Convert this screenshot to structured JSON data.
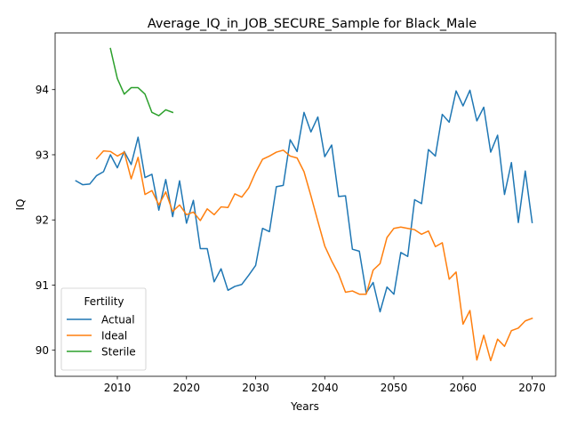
{
  "chart_data": {
    "type": "line",
    "title": "Average_IQ_in_JOB_SECURE_Sample for Black_Male",
    "xlabel": "Years",
    "ylabel": "IQ",
    "xlim": [
      2001,
      2073.4
    ],
    "ylim": [
      89.6,
      94.87
    ],
    "xticks": [
      2010,
      2020,
      2030,
      2040,
      2050,
      2060,
      2070
    ],
    "yticks": [
      90,
      91,
      92,
      93,
      94
    ],
    "grid": false,
    "legend": {
      "title": "Fertility",
      "placement": "lower-left"
    },
    "colors": {
      "Actual": "#1f77b4",
      "Ideal": "#ff7f0e",
      "Sterile": "#2ca02c"
    },
    "series": [
      {
        "name": "Actual",
        "x": [
          2004,
          2005,
          2006,
          2007,
          2008,
          2009,
          2010,
          2011,
          2012,
          2013,
          2014,
          2015,
          2016,
          2017,
          2018,
          2019,
          2020,
          2021,
          2022,
          2023,
          2024,
          2025,
          2026,
          2027,
          2028,
          2029,
          2030,
          2031,
          2032,
          2033,
          2034,
          2035,
          2036,
          2037,
          2038,
          2039,
          2040,
          2041,
          2042,
          2043,
          2044,
          2045,
          2046,
          2047,
          2048,
          2049,
          2050,
          2051,
          2052,
          2053,
          2054,
          2055,
          2056,
          2057,
          2058,
          2059,
          2060,
          2061,
          2062,
          2063,
          2064,
          2065,
          2066,
          2067,
          2068,
          2069,
          2070
        ],
        "y": [
          92.6,
          92.54,
          92.55,
          92.68,
          92.74,
          93.0,
          92.8,
          93.05,
          92.85,
          93.27,
          92.65,
          92.7,
          92.15,
          92.62,
          92.05,
          92.6,
          91.95,
          92.3,
          91.56,
          91.56,
          91.05,
          91.25,
          90.92,
          90.98,
          91.01,
          91.15,
          91.3,
          91.87,
          91.82,
          92.51,
          92.53,
          93.23,
          93.05,
          93.65,
          93.35,
          93.58,
          92.97,
          93.15,
          92.36,
          92.37,
          91.55,
          91.52,
          90.88,
          91.04,
          90.59,
          90.97,
          90.86,
          91.5,
          91.44,
          92.31,
          92.25,
          93.08,
          92.98,
          93.62,
          93.5,
          93.98,
          93.75,
          93.99,
          93.52,
          93.73,
          93.04,
          93.3,
          92.39,
          92.88,
          91.96,
          92.75,
          91.96
        ]
      },
      {
        "name": "Ideal",
        "x": [
          2007,
          2008,
          2009,
          2010,
          2011,
          2012,
          2013,
          2014,
          2015,
          2016,
          2017,
          2018,
          2019,
          2020,
          2021,
          2022,
          2023,
          2024,
          2025,
          2026,
          2027,
          2028,
          2029,
          2030,
          2031,
          2032,
          2033,
          2034,
          2035,
          2036,
          2037,
          2038,
          2039,
          2040,
          2041,
          2042,
          2043,
          2044,
          2045,
          2046,
          2047,
          2048,
          2049,
          2050,
          2051,
          2052,
          2053,
          2054,
          2055,
          2056,
          2057,
          2058,
          2059,
          2060,
          2061,
          2062,
          2063,
          2064,
          2065,
          2066,
          2067,
          2068,
          2069,
          2070
        ],
        "y": [
          92.94,
          93.06,
          93.05,
          92.98,
          93.04,
          92.63,
          92.96,
          92.39,
          92.45,
          92.23,
          92.43,
          92.13,
          92.23,
          92.08,
          92.12,
          91.99,
          92.17,
          92.08,
          92.2,
          92.19,
          92.4,
          92.35,
          92.49,
          92.73,
          92.93,
          92.98,
          93.04,
          93.07,
          92.98,
          92.95,
          92.74,
          92.37,
          91.98,
          91.6,
          91.37,
          91.17,
          90.89,
          90.91,
          90.86,
          90.86,
          91.23,
          91.33,
          91.73,
          91.87,
          91.89,
          91.87,
          91.85,
          91.78,
          91.83,
          91.59,
          91.65,
          91.09,
          91.2,
          90.4,
          90.61,
          89.85,
          90.23,
          89.84,
          90.17,
          90.06,
          90.3,
          90.34,
          90.45,
          90.49
        ]
      },
      {
        "name": "Sterile",
        "x": [
          2009,
          2010,
          2011,
          2012,
          2013,
          2014,
          2015,
          2016,
          2017,
          2018
        ],
        "y": [
          94.63,
          94.17,
          93.93,
          94.03,
          94.03,
          93.93,
          93.65,
          93.6,
          93.69,
          93.65
        ]
      }
    ]
  }
}
